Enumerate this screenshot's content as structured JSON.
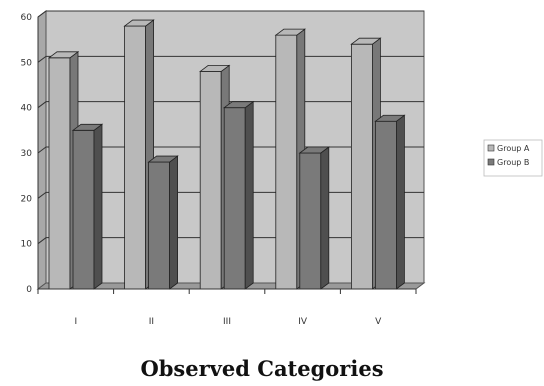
{
  "chart_data": {
    "type": "bar",
    "style": "3d-clustered-column",
    "categories": [
      "I",
      "II",
      "III",
      "IV",
      "V"
    ],
    "series": [
      {
        "name": "Group A",
        "values": [
          51,
          58,
          48,
          56,
          54
        ],
        "color": "#b8b8b8"
      },
      {
        "name": "Group B",
        "values": [
          35,
          28,
          40,
          30,
          37
        ],
        "color": "#7a7a7a"
      }
    ],
    "title": "",
    "xlabel": "Observed Categories",
    "ylabel": "",
    "ylim": [
      0,
      60
    ],
    "yticks": [
      0,
      10,
      20,
      30,
      40,
      50,
      60
    ],
    "grid": true,
    "legend_position": "right",
    "wall_color": "#c8c8c8",
    "floor_color": "#9a9a9a"
  }
}
